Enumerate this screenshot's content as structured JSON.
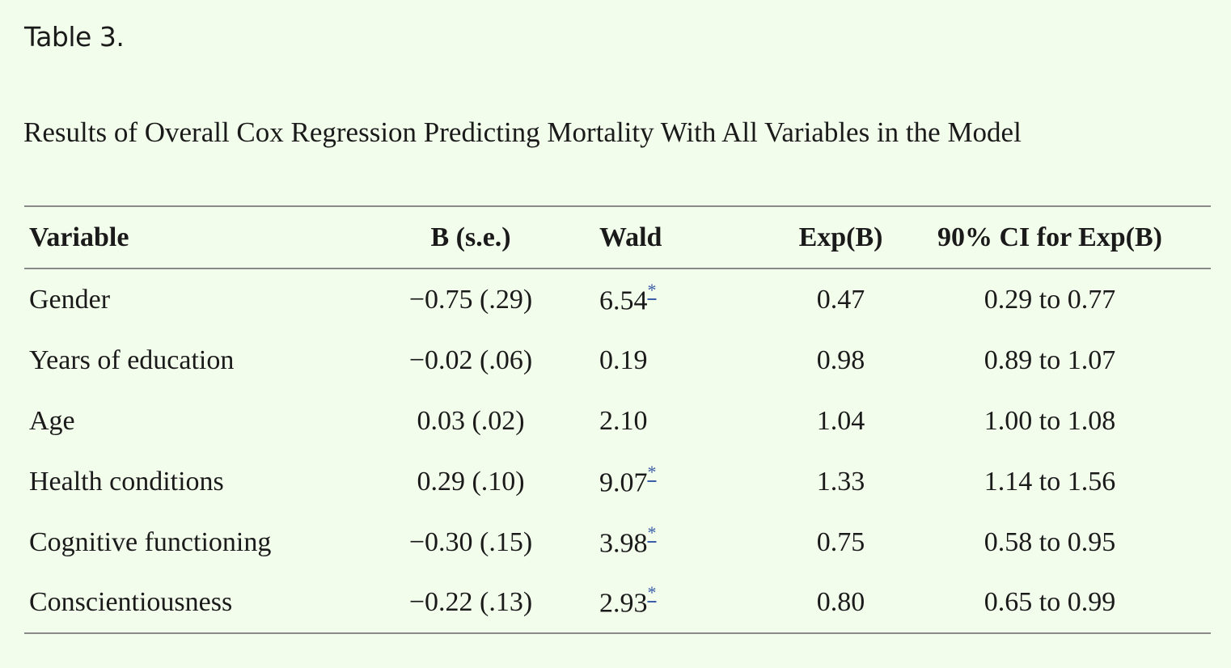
{
  "table_label": "Table 3.",
  "caption": "Results of Overall Cox Regression Predicting Mortality With All Variables in the Model",
  "columns": [
    "Variable",
    "B (s.e.)",
    "Wald",
    "Exp(B)",
    "90% CI for Exp(B)"
  ],
  "rows": [
    {
      "variable": "Gender",
      "b_se": "−0.75 (.29)",
      "wald": "6.54",
      "wald_mark": "*",
      "exp_b": "0.47",
      "ci": "0.29 to 0.77"
    },
    {
      "variable": "Years of education",
      "b_se": "−0.02 (.06)",
      "wald": "0.19",
      "wald_mark": "",
      "exp_b": "0.98",
      "ci": "0.89 to 1.07"
    },
    {
      "variable": "Age",
      "b_se": "0.03 (.02)",
      "wald": "2.10",
      "wald_mark": "",
      "exp_b": "1.04",
      "ci": "1.00 to 1.08"
    },
    {
      "variable": "Health conditions",
      "b_se": "0.29 (.10)",
      "wald": "9.07",
      "wald_mark": "*",
      "exp_b": "1.33",
      "ci": "1.14 to 1.56"
    },
    {
      "variable": "Cognitive functioning",
      "b_se": "−0.30 (.15)",
      "wald": "3.98",
      "wald_mark": "*",
      "exp_b": "0.75",
      "ci": "0.58 to 0.95"
    },
    {
      "variable": "Conscientiousness",
      "b_se": "−0.22 (.13)",
      "wald": "2.93",
      "wald_mark": "*",
      "exp_b": "0.80",
      "ci": "0.65 to 0.99"
    }
  ],
  "colors": {
    "background": "#f3fdec",
    "text": "#1a1a1a",
    "rule": "#8a8a8a",
    "link": "#3a5fa8"
  }
}
